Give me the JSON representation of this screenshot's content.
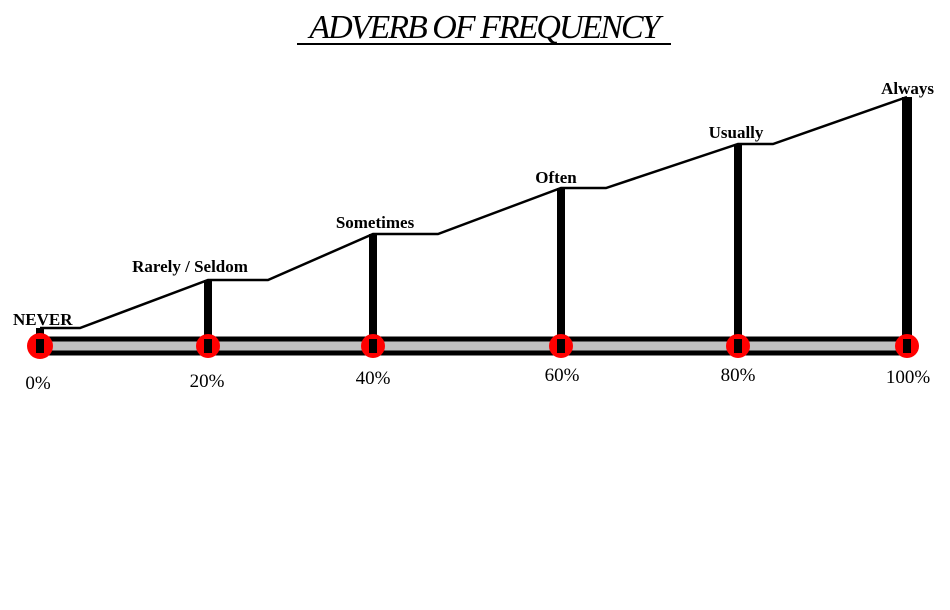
{
  "title": "ADVERB OF FREQUENCY",
  "colors": {
    "line": "#000000",
    "bar_fill": "#c0c0c0",
    "marker": "#ff0000"
  },
  "levels": [
    {
      "label": "NEVER",
      "percent": "0%",
      "value": 0
    },
    {
      "label": "Rarely / Seldom",
      "percent": "20%",
      "value": 20
    },
    {
      "label": "Sometimes",
      "percent": "40%",
      "value": 40
    },
    {
      "label": "Often",
      "percent": "60%",
      "value": 60
    },
    {
      "label": "Usually",
      "percent": "80%",
      "value": 80
    },
    {
      "label": "Always",
      "percent": "100%",
      "value": 100
    }
  ]
}
